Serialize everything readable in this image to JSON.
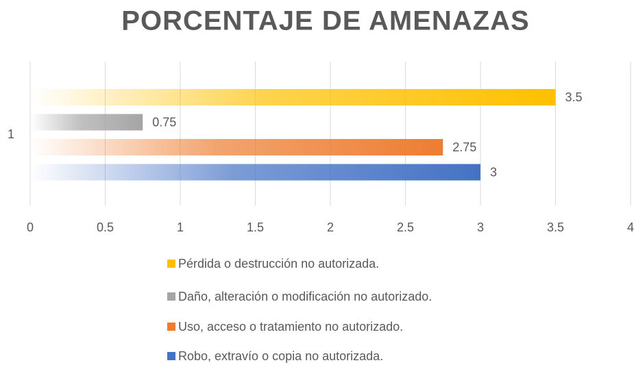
{
  "chart_data": {
    "type": "hbar",
    "title": "PORCENTAJE DE AMENAZAS",
    "categories": [
      "1"
    ],
    "series": [
      {
        "name": "Pérdida o destrucción no autorizada.",
        "color": "#ffc000",
        "values": [
          3.5
        ]
      },
      {
        "name": "Daño, alteración o modificación no autorizado.",
        "color": "#a5a5a5",
        "values": [
          0.75
        ]
      },
      {
        "name": "Uso, acceso o tratamiento no autorizado.",
        "color": "#ed7d31",
        "values": [
          2.75
        ]
      },
      {
        "name": "Robo, extravío o copia no autorizada.",
        "color": "#4472c4",
        "values": [
          3
        ]
      }
    ],
    "xlim": [
      0,
      4
    ],
    "xticks": [
      0,
      0.5,
      1,
      1.5,
      2,
      2.5,
      3,
      3.5,
      4
    ],
    "grid": true,
    "legend": "bottom"
  }
}
